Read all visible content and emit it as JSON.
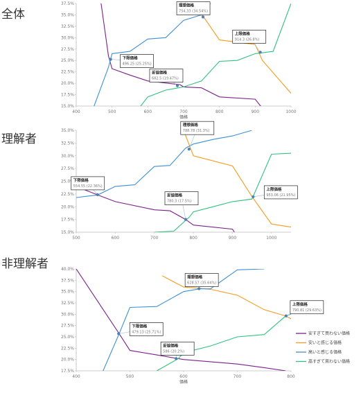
{
  "colors": {
    "series": [
      "#7B1F8C",
      "#F59A1E",
      "#3D8FD6",
      "#2EC27E"
    ],
    "axis": "#BBBBBB",
    "marker": "#4F7FB3"
  },
  "legend": [
    "安すぎて買わない価格",
    "安いと感じる価格",
    "高いと感じる価格",
    "高すぎて買わない価格"
  ],
  "chart_data": [
    {
      "type": "line",
      "panel_label": "全体",
      "xlabel": "価格",
      "xlim": [
        400,
        1000
      ],
      "ylim": [
        15,
        37.5
      ],
      "xticks": [
        400,
        500,
        600,
        700,
        800,
        900,
        1000
      ],
      "yticks": [
        15,
        17.5,
        20,
        22.5,
        25,
        27.5,
        30,
        32.5,
        35,
        37.5
      ],
      "series": [
        {
          "points": [
            [
              465,
              40
            ],
            [
              490,
              26
            ],
            [
              500,
              23.2
            ],
            [
              550,
              21.8
            ],
            [
              600,
              20.5
            ],
            [
              690,
              19.7
            ],
            [
              700,
              19.2
            ],
            [
              750,
              19
            ],
            [
              800,
              17
            ],
            [
              900,
              16.5
            ],
            [
              920,
              14.5
            ]
          ]
        },
        {
          "points": [
            [
              710,
              40
            ],
            [
              720,
              36.2
            ],
            [
              750,
              35.2
            ],
            [
              800,
              29.5
            ],
            [
              900,
              28.5
            ],
            [
              920,
              25
            ],
            [
              1000,
              17.8
            ]
          ]
        },
        {
          "points": [
            [
              450,
              15
            ],
            [
              490,
              23.5
            ],
            [
              500,
              26.5
            ],
            [
              550,
              27
            ],
            [
              600,
              29.7
            ],
            [
              650,
              30
            ],
            [
              700,
              33.8
            ],
            [
              750,
              35
            ],
            [
              800,
              40
            ]
          ]
        },
        {
          "points": [
            [
              575,
              14.5
            ],
            [
              600,
              17
            ],
            [
              650,
              18.5
            ],
            [
              700,
              19.2
            ],
            [
              750,
              20.5
            ],
            [
              800,
              24.8
            ],
            [
              850,
              25
            ],
            [
              900,
              26.5
            ],
            [
              950,
              27
            ],
            [
              1000,
              37.5
            ]
          ]
        }
      ],
      "annotations": [
        {
          "title": "下限価格",
          "value": "496.25 (25.25%)",
          "point": [
            496,
            25.25
          ]
        },
        {
          "title": "妥協価格",
          "value": "682.5 (19.47%)",
          "point": [
            682.5,
            19.47
          ]
        },
        {
          "title": "理想価格",
          "value": "754.33 (34.54%)",
          "point": [
            754.3,
            34.54
          ]
        },
        {
          "title": "上限価格",
          "value": "914.3 (26.8%)",
          "point": [
            914.3,
            26.8
          ]
        }
      ]
    },
    {
      "type": "line",
      "panel_label": "理解者",
      "xlabel": "",
      "xlim": [
        500,
        1050
      ],
      "ylim": [
        15,
        35
      ],
      "xticks": [
        500,
        600,
        700,
        800,
        900,
        1000
      ],
      "yticks": [
        15,
        17.5,
        20,
        22.5,
        25,
        27.5,
        30,
        32.5,
        35
      ],
      "series": [
        {
          "points": [
            [
              500,
              24
            ],
            [
              555,
              22.3
            ],
            [
              600,
              21
            ],
            [
              700,
              19.4
            ],
            [
              740,
              19.2
            ],
            [
              780,
              17.5
            ],
            [
              800,
              16.4
            ],
            [
              900,
              15.6
            ],
            [
              905,
              15
            ]
          ]
        },
        {
          "points": [
            [
              750,
              40
            ],
            [
              800,
              30
            ],
            [
              900,
              28
            ],
            [
              950,
              22
            ],
            [
              1000,
              16.6
            ],
            [
              1050,
              16
            ]
          ]
        },
        {
          "points": [
            [
              500,
              21.8
            ],
            [
              555,
              22.3
            ],
            [
              600,
              24
            ],
            [
              650,
              24.3
            ],
            [
              700,
              27.9
            ],
            [
              740,
              28.1
            ],
            [
              780,
              31.5
            ],
            [
              800,
              32.3
            ],
            [
              850,
              33.2
            ],
            [
              900,
              33.9
            ],
            [
              950,
              35
            ]
          ]
        },
        {
          "points": [
            [
              700,
              15
            ],
            [
              750,
              15.2
            ],
            [
              790,
              18
            ],
            [
              800,
              19
            ],
            [
              850,
              20
            ],
            [
              900,
              21
            ],
            [
              950,
              21.5
            ],
            [
              1000,
              30.3
            ],
            [
              1050,
              30.5
            ]
          ]
        }
      ],
      "annotations": [
        {
          "title": "下限価格",
          "value": "554.55 (22.36%)",
          "point": [
            554.5,
            22.36
          ]
        },
        {
          "title": "妥協価格",
          "value": "780.3 (17.5%)",
          "point": [
            780.3,
            17.5
          ]
        },
        {
          "title": "理想価格",
          "value": "788.78 (31.3%)",
          "point": [
            788.8,
            31.3
          ]
        },
        {
          "title": "上限価格",
          "value": "953.06 (21.95%)",
          "point": [
            953,
            21.95
          ]
        }
      ]
    },
    {
      "type": "line",
      "panel_label": "非理解者",
      "xlabel": "価格",
      "xlim": [
        400,
        800
      ],
      "ylim": [
        17.5,
        40
      ],
      "xticks": [
        400,
        500,
        600,
        700,
        800
      ],
      "yticks": [
        17.5,
        20,
        22.5,
        25,
        27.5,
        30,
        32.5,
        35,
        37.5,
        40
      ],
      "series": [
        {
          "points": [
            [
              400,
              40
            ],
            [
              480,
              25.7
            ],
            [
              500,
              22
            ],
            [
              550,
              21
            ],
            [
              590,
              20.2
            ],
            [
              600,
              20
            ],
            [
              650,
              19.5
            ],
            [
              700,
              19
            ],
            [
              750,
              18.2
            ],
            [
              790,
              17.5
            ]
          ]
        },
        {
          "points": [
            [
              560,
              38.5
            ],
            [
              600,
              36
            ],
            [
              650,
              35.5
            ],
            [
              700,
              34.2
            ],
            [
              750,
              31
            ],
            [
              790,
              29.6
            ],
            [
              800,
              29
            ],
            [
              850,
              28.9
            ]
          ]
        },
        {
          "points": [
            [
              450,
              17.5
            ],
            [
              480,
              25.7
            ],
            [
              500,
              31.5
            ],
            [
              550,
              31.7
            ],
            [
              600,
              35
            ],
            [
              630,
              35.6
            ],
            [
              650,
              35.6
            ],
            [
              700,
              39.8
            ],
            [
              750,
              40
            ]
          ]
        },
        {
          "points": [
            [
              550,
              17.5
            ],
            [
              590,
              20.2
            ],
            [
              600,
              21.5
            ],
            [
              650,
              23
            ],
            [
              700,
              25
            ],
            [
              750,
              25.5
            ],
            [
              790,
              29.6
            ],
            [
              800,
              30
            ]
          ]
        }
      ],
      "annotations": [
        {
          "title": "下限価格",
          "value": "479.13 (25.71%)",
          "point": [
            479,
            25.71
          ]
        },
        {
          "title": "妥協価格",
          "value": "586 (20.2%)",
          "point": [
            586,
            20.2
          ]
        },
        {
          "title": "理想価格",
          "value": "628.57 (35.64%)",
          "point": [
            628.6,
            35.64
          ]
        },
        {
          "title": "上限価格",
          "value": "790.81 (29.63%)",
          "point": [
            790.8,
            29.63
          ]
        }
      ]
    }
  ]
}
